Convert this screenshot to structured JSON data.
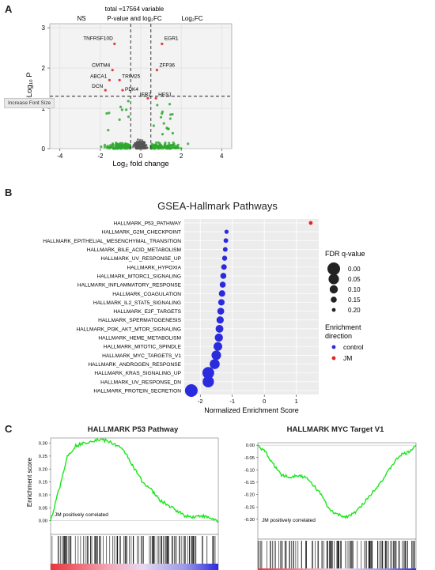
{
  "panels": {
    "a": "A",
    "b": "B",
    "c": "C"
  },
  "volcano": {
    "title_line1": "total =17564 variable",
    "legend": [
      "NS",
      "P-value and log₂FC",
      "Log₂FC"
    ],
    "xlabel": "Log₂ fold change",
    "ylabel": "−Log₁₀ P",
    "xticks": [
      "-4",
      "-2",
      "0",
      "2",
      "4"
    ],
    "yticks": [
      "0",
      "1",
      "2",
      "3"
    ],
    "genes": [
      "TNFRSF10D",
      "EGR1",
      "CMTM4",
      "ZFP36",
      "ABCA1",
      "TRIM25",
      "DCN",
      "PDK4",
      "IER2",
      "HES1"
    ],
    "tooltip": "Increase Font Size"
  },
  "gsea": {
    "title": "GSEA-Hallmark Pathways",
    "xlabel": "Normalized Enrichment Score",
    "xticks": [
      "-2",
      "-1",
      "0",
      "1"
    ],
    "legend_fdr_title": "FDR q-value",
    "legend_fdr_values": [
      "0.00",
      "0.05",
      "0.10",
      "0.15",
      "0.20"
    ],
    "legend_dir_title": "Enrichment direction",
    "legend_dir_items": [
      "control",
      "JM"
    ],
    "colors": {
      "control": "#2b2bde",
      "JM": "#e02525"
    }
  },
  "gsea_plots": {
    "left_title": "HALLMARK P53 Pathway",
    "right_title": "HALLMARK MYC Target V1",
    "ylabel": "Enrichment score",
    "left_yticks": [
      "0.30",
      "0.25",
      "0.20",
      "0.15",
      "0.10",
      "0.05",
      "0.00"
    ],
    "right_yticks": [
      "0.00",
      "-0.05",
      "-0.10",
      "-0.15",
      "-0.20",
      "-0.25",
      "-0.30"
    ],
    "annotation": "JM positively correlated",
    "line_color": "#19e619"
  },
  "chart_data": [
    {
      "type": "scatter",
      "title": "total =17564 variable",
      "xlabel": "Log2 fold change",
      "ylabel": "-Log10 P",
      "xlim": [
        -4.5,
        4.5
      ],
      "ylim": [
        0,
        3.1
      ],
      "legend": [
        "NS",
        "P-value and log2FC",
        "Log2FC"
      ],
      "series": [
        {
          "name": "P-value and log2FC",
          "color": "#e04040",
          "labels": [
            "TNFRSF10D",
            "EGR1",
            "CMTM4",
            "ZFP36",
            "ABCA1",
            "TRIM25",
            "DCN",
            "PDK4",
            "IER2",
            "HES1"
          ],
          "x": [
            -1.3,
            1.05,
            -1.4,
            0.8,
            -1.55,
            -1.05,
            -1.75,
            -0.9,
            0.35,
            0.75
          ],
          "y": [
            2.6,
            2.6,
            1.95,
            1.95,
            1.7,
            1.7,
            1.45,
            1.45,
            1.25,
            1.25
          ]
        }
      ]
    },
    {
      "type": "scatter",
      "title": "GSEA-Hallmark Pathways",
      "xlabel": "Normalized Enrichment Score",
      "xlim": [
        -2.5,
        1.7
      ],
      "categories": [
        "HALLMARK_P53_PATHWAY",
        "HALLMARK_G2M_CHECKPOINT",
        "HALLMARK_EPITHELIAL_MESENCHYMAL_TRANSITION",
        "HALLMARK_BILE_ACID_METABOLISM",
        "HALLMARK_UV_RESPONSE_UP",
        "HALLMARK_HYPOXIA",
        "HALLMARK_MTORC1_SIGNALING",
        "HALLMARK_INFLAMMATORY_RESPONSE",
        "HALLMARK_COAGULATION",
        "HALLMARK_IL2_STAT5_SIGNALING",
        "HALLMARK_E2F_TARGETS",
        "HALLMARK_SPERMATOGENESIS",
        "HALLMARK_PI3K_AKT_MTOR_SIGNALING",
        "HALLMARK_HEME_METABOLISM",
        "HALLMARK_MITOTIC_SPINDLE",
        "HALLMARK_MYC_TARGETS_V1",
        "HALLMARK_ANDROGEN_RESPONSE",
        "HALLMARK_KRAS_SIGNALING_UP",
        "HALLMARK_UV_RESPONSE_DN",
        "HALLMARK_PROTEIN_SECRETION"
      ],
      "nes": [
        1.45,
        -1.18,
        -1.2,
        -1.22,
        -1.24,
        -1.26,
        -1.28,
        -1.3,
        -1.32,
        -1.34,
        -1.36,
        -1.38,
        -1.4,
        -1.42,
        -1.45,
        -1.5,
        -1.55,
        -1.75,
        -1.75,
        -2.28
      ],
      "fdr": [
        0.2,
        0.19,
        0.18,
        0.18,
        0.17,
        0.16,
        0.15,
        0.15,
        0.14,
        0.14,
        0.13,
        0.12,
        0.11,
        0.1,
        0.09,
        0.07,
        0.06,
        0.02,
        0.03,
        0.0
      ],
      "direction": [
        "JM",
        "control",
        "control",
        "control",
        "control",
        "control",
        "control",
        "control",
        "control",
        "control",
        "control",
        "control",
        "control",
        "control",
        "control",
        "control",
        "control",
        "control",
        "control",
        "control"
      ],
      "legend": [
        "FDR q-value",
        "Enrichment direction"
      ]
    },
    {
      "type": "line",
      "title": "HALLMARK P53 Pathway",
      "ylabel": "Enrichment score",
      "ylim": [
        -0.01,
        0.32
      ],
      "x": [
        0,
        0.05,
        0.1,
        0.15,
        0.2,
        0.25,
        0.3,
        0.35,
        0.4,
        0.45,
        0.5,
        0.55,
        0.6,
        0.65,
        0.7,
        0.75,
        0.8,
        0.85,
        0.9,
        0.95,
        1.0
      ],
      "values": [
        0.0,
        0.12,
        0.25,
        0.29,
        0.3,
        0.31,
        0.315,
        0.305,
        0.29,
        0.26,
        0.2,
        0.15,
        0.12,
        0.08,
        0.06,
        0.04,
        0.02,
        0.015,
        0.02,
        0.01,
        0.0
      ]
    },
    {
      "type": "line",
      "title": "HALLMARK MYC Target V1",
      "ylabel": "Enrichment score",
      "ylim": [
        -0.31,
        0.01
      ],
      "x": [
        0,
        0.05,
        0.1,
        0.15,
        0.2,
        0.25,
        0.3,
        0.35,
        0.4,
        0.45,
        0.5,
        0.55,
        0.6,
        0.65,
        0.7,
        0.75,
        0.8,
        0.85,
        0.9,
        0.95,
        1.0
      ],
      "values": [
        0.0,
        -0.03,
        -0.08,
        -0.12,
        -0.13,
        -0.12,
        -0.13,
        -0.16,
        -0.2,
        -0.26,
        -0.28,
        -0.29,
        -0.28,
        -0.25,
        -0.21,
        -0.17,
        -0.13,
        -0.08,
        -0.04,
        -0.03,
        0.0
      ]
    }
  ]
}
